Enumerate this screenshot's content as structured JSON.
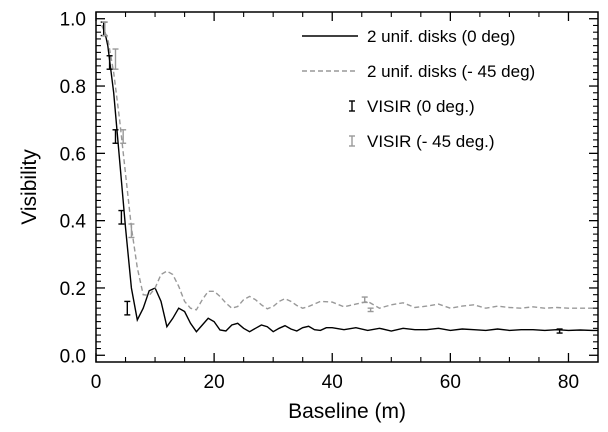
{
  "chart_data": {
    "type": "line",
    "title": "",
    "xlabel": "Baseline (m)",
    "ylabel": "Visibility",
    "xlim": [
      0,
      85
    ],
    "ylim": [
      -0.02,
      1.02
    ],
    "grid": false,
    "legend_position": "top-right",
    "x_ticks": [
      0,
      20,
      40,
      60,
      80
    ],
    "y_ticks": [
      0.0,
      0.2,
      0.4,
      0.6,
      0.8,
      1.0
    ],
    "x_tick_labels": [
      "0",
      "20",
      "40",
      "60",
      "80"
    ],
    "y_tick_labels": [
      "0.0",
      "0.2",
      "0.4",
      "0.6",
      "0.8",
      "1.0"
    ],
    "series": [
      {
        "name": "2 unif. disks (0 deg)",
        "kind": "line",
        "color": "#000000",
        "dash": "solid",
        "x": [
          1,
          1.5,
          2,
          3,
          4,
          5,
          6,
          7,
          8,
          9,
          10,
          11,
          12,
          13,
          14,
          15,
          16,
          17,
          18,
          19,
          20,
          21,
          22,
          23,
          24,
          25,
          26,
          27,
          28,
          29,
          30,
          31,
          32,
          33,
          34,
          35,
          36,
          37,
          38,
          39,
          40,
          42,
          44,
          46,
          48,
          50,
          52,
          54,
          56,
          58,
          60,
          62,
          64,
          66,
          68,
          70,
          72,
          74,
          76,
          78,
          80,
          82,
          84,
          85
        ],
        "y": [
          0.98,
          0.96,
          0.92,
          0.78,
          0.58,
          0.38,
          0.2,
          0.105,
          0.14,
          0.192,
          0.2,
          0.16,
          0.085,
          0.11,
          0.14,
          0.13,
          0.095,
          0.07,
          0.09,
          0.11,
          0.1,
          0.075,
          0.072,
          0.09,
          0.095,
          0.08,
          0.07,
          0.08,
          0.09,
          0.085,
          0.07,
          0.08,
          0.088,
          0.078,
          0.072,
          0.082,
          0.086,
          0.076,
          0.074,
          0.082,
          0.082,
          0.076,
          0.082,
          0.074,
          0.08,
          0.072,
          0.08,
          0.076,
          0.076,
          0.08,
          0.074,
          0.078,
          0.076,
          0.074,
          0.078,
          0.074,
          0.076,
          0.076,
          0.074,
          0.076,
          0.074,
          0.075,
          0.074,
          0.074
        ]
      },
      {
        "name": "2 unif. disks (- 45 deg)",
        "kind": "line",
        "color": "#999999",
        "dash": "dashed",
        "x": [
          1,
          2,
          3,
          4,
          5,
          6,
          7,
          8,
          9,
          10,
          11,
          12,
          13,
          14,
          15,
          16,
          17,
          18,
          19,
          20,
          21,
          22,
          23,
          24,
          25,
          26,
          27,
          28,
          29,
          30,
          31,
          32,
          33,
          34,
          35,
          36,
          38,
          40,
          42,
          44,
          46,
          48,
          50,
          52,
          54,
          56,
          58,
          60,
          62,
          64,
          66,
          68,
          70,
          72,
          74,
          76,
          78,
          80,
          82,
          84,
          85
        ],
        "y": [
          0.98,
          0.94,
          0.84,
          0.7,
          0.54,
          0.38,
          0.26,
          0.18,
          0.178,
          0.2,
          0.24,
          0.25,
          0.24,
          0.205,
          0.16,
          0.14,
          0.135,
          0.165,
          0.19,
          0.19,
          0.175,
          0.155,
          0.14,
          0.145,
          0.165,
          0.175,
          0.165,
          0.15,
          0.138,
          0.145,
          0.16,
          0.168,
          0.16,
          0.148,
          0.14,
          0.145,
          0.16,
          0.158,
          0.144,
          0.152,
          0.16,
          0.14,
          0.15,
          0.156,
          0.142,
          0.146,
          0.152,
          0.14,
          0.146,
          0.15,
          0.14,
          0.146,
          0.142,
          0.14,
          0.144,
          0.14,
          0.142,
          0.14,
          0.14,
          0.14,
          0.14
        ]
      },
      {
        "name": "VISIR (0 deg.)",
        "kind": "errorbar",
        "color": "#000000",
        "x": [
          1.3,
          2.3,
          3.3,
          4.3,
          5.3,
          78.5
        ],
        "y": [
          0.97,
          0.87,
          0.65,
          0.41,
          0.14,
          0.072
        ],
        "err": [
          0.02,
          0.02,
          0.02,
          0.02,
          0.02,
          0.006
        ]
      },
      {
        "name": "VISIR (- 45 deg.)",
        "kind": "errorbar",
        "color": "#999999",
        "x": [
          1.5,
          3.3,
          4.6,
          6.0,
          45.5,
          46.5
        ],
        "y": [
          0.97,
          0.88,
          0.65,
          0.37,
          0.165,
          0.135
        ],
        "err": [
          0.02,
          0.03,
          0.02,
          0.02,
          0.008,
          0.005
        ]
      }
    ]
  }
}
